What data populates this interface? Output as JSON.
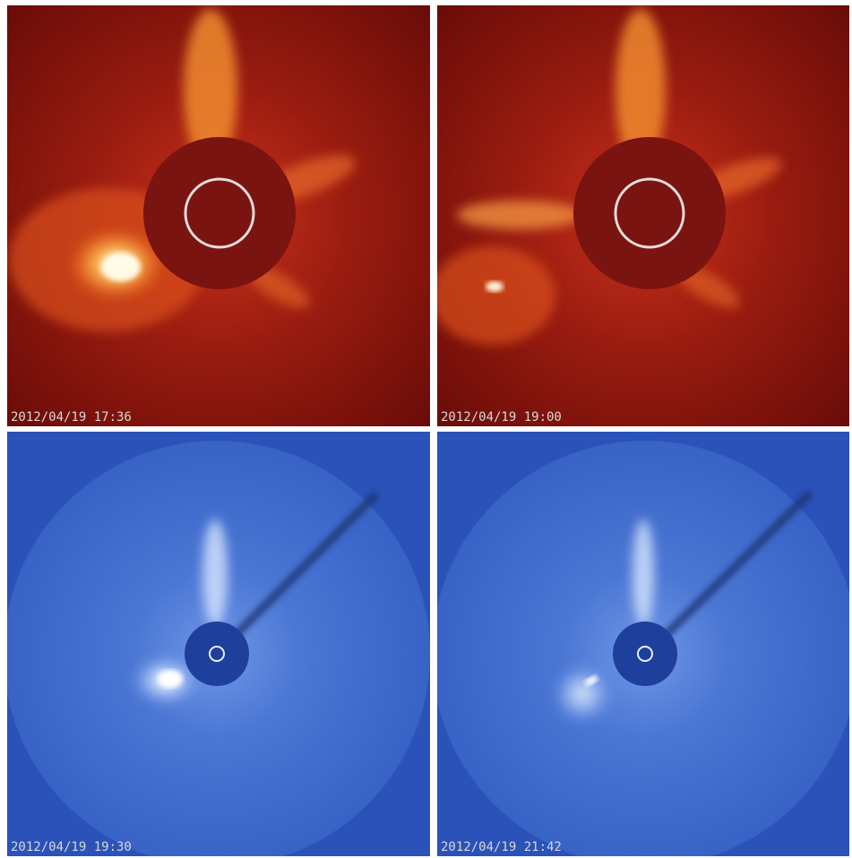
{
  "panels": [
    {
      "timestamp": "2012/04/19 17:36"
    },
    {
      "timestamp": "2012/04/19 19:00"
    },
    {
      "timestamp": "2012/04/19 19:30"
    },
    {
      "timestamp": "2012/04/19 21:42"
    }
  ]
}
